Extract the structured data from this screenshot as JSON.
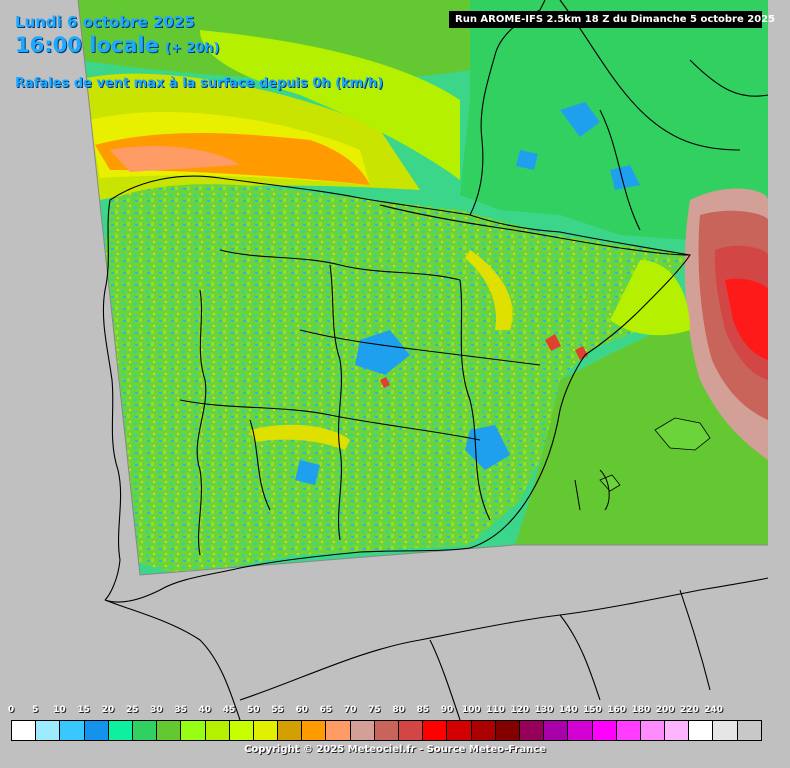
{
  "header": {
    "date": "Lundi 6 octobre 2025",
    "time_label": "16:00 locale",
    "lead_time": "(+ 20h)",
    "field_title": "Rafales de vent max à la surface depuis 0h (km/h)"
  },
  "run_info": "Run AROME-IFS 2.5km 18 Z du Dimanche 5 octobre 2025",
  "legend": {
    "ticks": [
      "0",
      "5",
      "10",
      "15",
      "20",
      "25",
      "30",
      "35",
      "40",
      "45",
      "50",
      "55",
      "60",
      "65",
      "70",
      "75",
      "80",
      "85",
      "90",
      "100",
      "110",
      "120",
      "130",
      "140",
      "150",
      "160",
      "180",
      "200",
      "220",
      "240"
    ],
    "colors": [
      "#ffffff",
      "#9eeafe",
      "#38c8fe",
      "#1493ee",
      "#0cf0a0",
      "#32d060",
      "#64c832",
      "#96ff14",
      "#b4f000",
      "#c8ff00",
      "#e0f000",
      "#d2a000",
      "#ff9b00",
      "#ff9b64",
      "#d2a096",
      "#c8645a",
      "#d24646",
      "#ff0000",
      "#d20000",
      "#aa0000",
      "#820000",
      "#96005a",
      "#aa00aa",
      "#d200d2",
      "#ff00ff",
      "#ff3cff",
      "#ff8cff",
      "#ffb4ff",
      "#ffffff",
      "#e6e6e6",
      "#c8c8c8"
    ]
  },
  "copyright": "Copyright © 2025 Meteociel.fr - Source Meteo-France"
}
